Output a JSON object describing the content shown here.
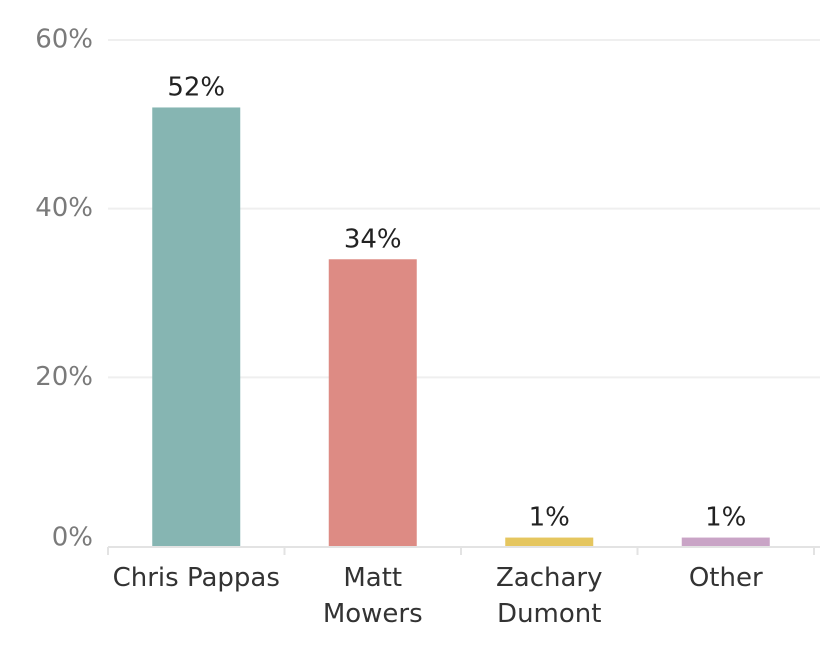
{
  "chart_data": {
    "type": "bar",
    "categories": [
      [
        "Chris Pappas"
      ],
      [
        "Matt",
        "Mowers"
      ],
      [
        "Zachary",
        "Dumont"
      ],
      [
        "Other"
      ]
    ],
    "values": [
      52,
      34,
      1,
      1
    ],
    "data_labels": [
      "52%",
      "34%",
      "1%",
      "1%"
    ],
    "colors": [
      "#86b5b2",
      "#dd8b84",
      "#e5c65f",
      "#c9a4c6"
    ],
    "ylim": [
      0,
      60
    ],
    "yticks": [
      0,
      20,
      40,
      60
    ],
    "ytick_labels": [
      "0%",
      "20%",
      "40%",
      "60%"
    ],
    "grid": true
  }
}
